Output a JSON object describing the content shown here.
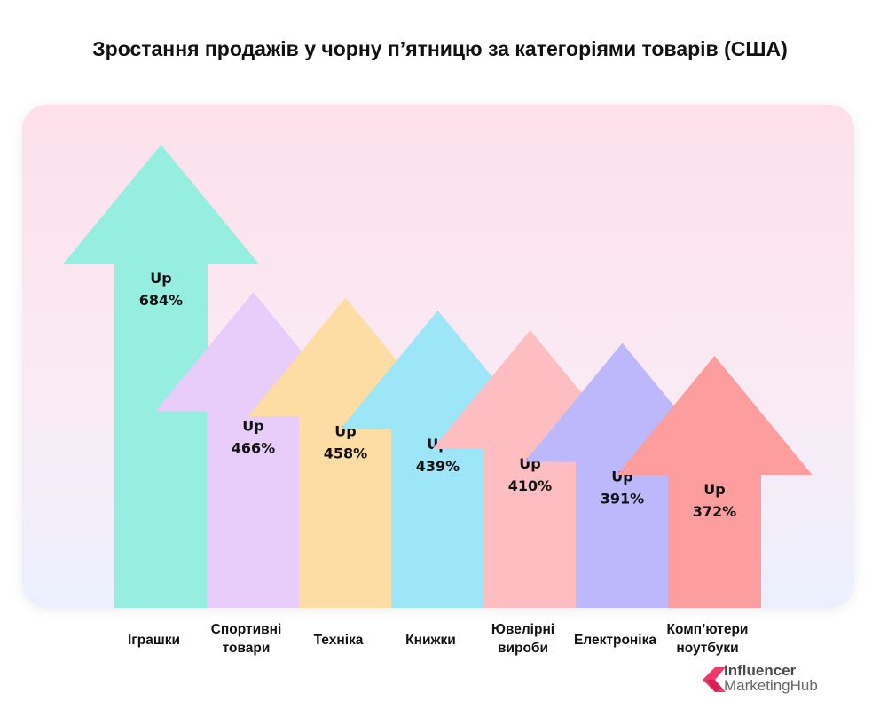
{
  "chart_data": {
    "type": "bar",
    "style": "arrows",
    "title": "Зростання продажів у чорну п’ятницю за категоріями товарів (США)",
    "value_prefix": "Up",
    "unit": "%",
    "categories": [
      [
        "Іграшки"
      ],
      [
        "Спортивні",
        "товари"
      ],
      [
        "Техніка"
      ],
      [
        "Книжки"
      ],
      [
        "Ювелірні",
        "вироби"
      ],
      [
        "Електроніка"
      ],
      [
        "Комп’ютери",
        "ноутбуки"
      ]
    ],
    "values": [
      684,
      466,
      458,
      439,
      410,
      391,
      372
    ],
    "colors": [
      "#95eedf",
      "#e8ccfa",
      "#fdddA3",
      "#9de6f8",
      "#fdbdc1",
      "#bdb8fc",
      "#fd9d9d"
    ]
  },
  "logo": {
    "line1": "Influencer",
    "line2": "MarketingHub",
    "color": "#f0386b"
  }
}
